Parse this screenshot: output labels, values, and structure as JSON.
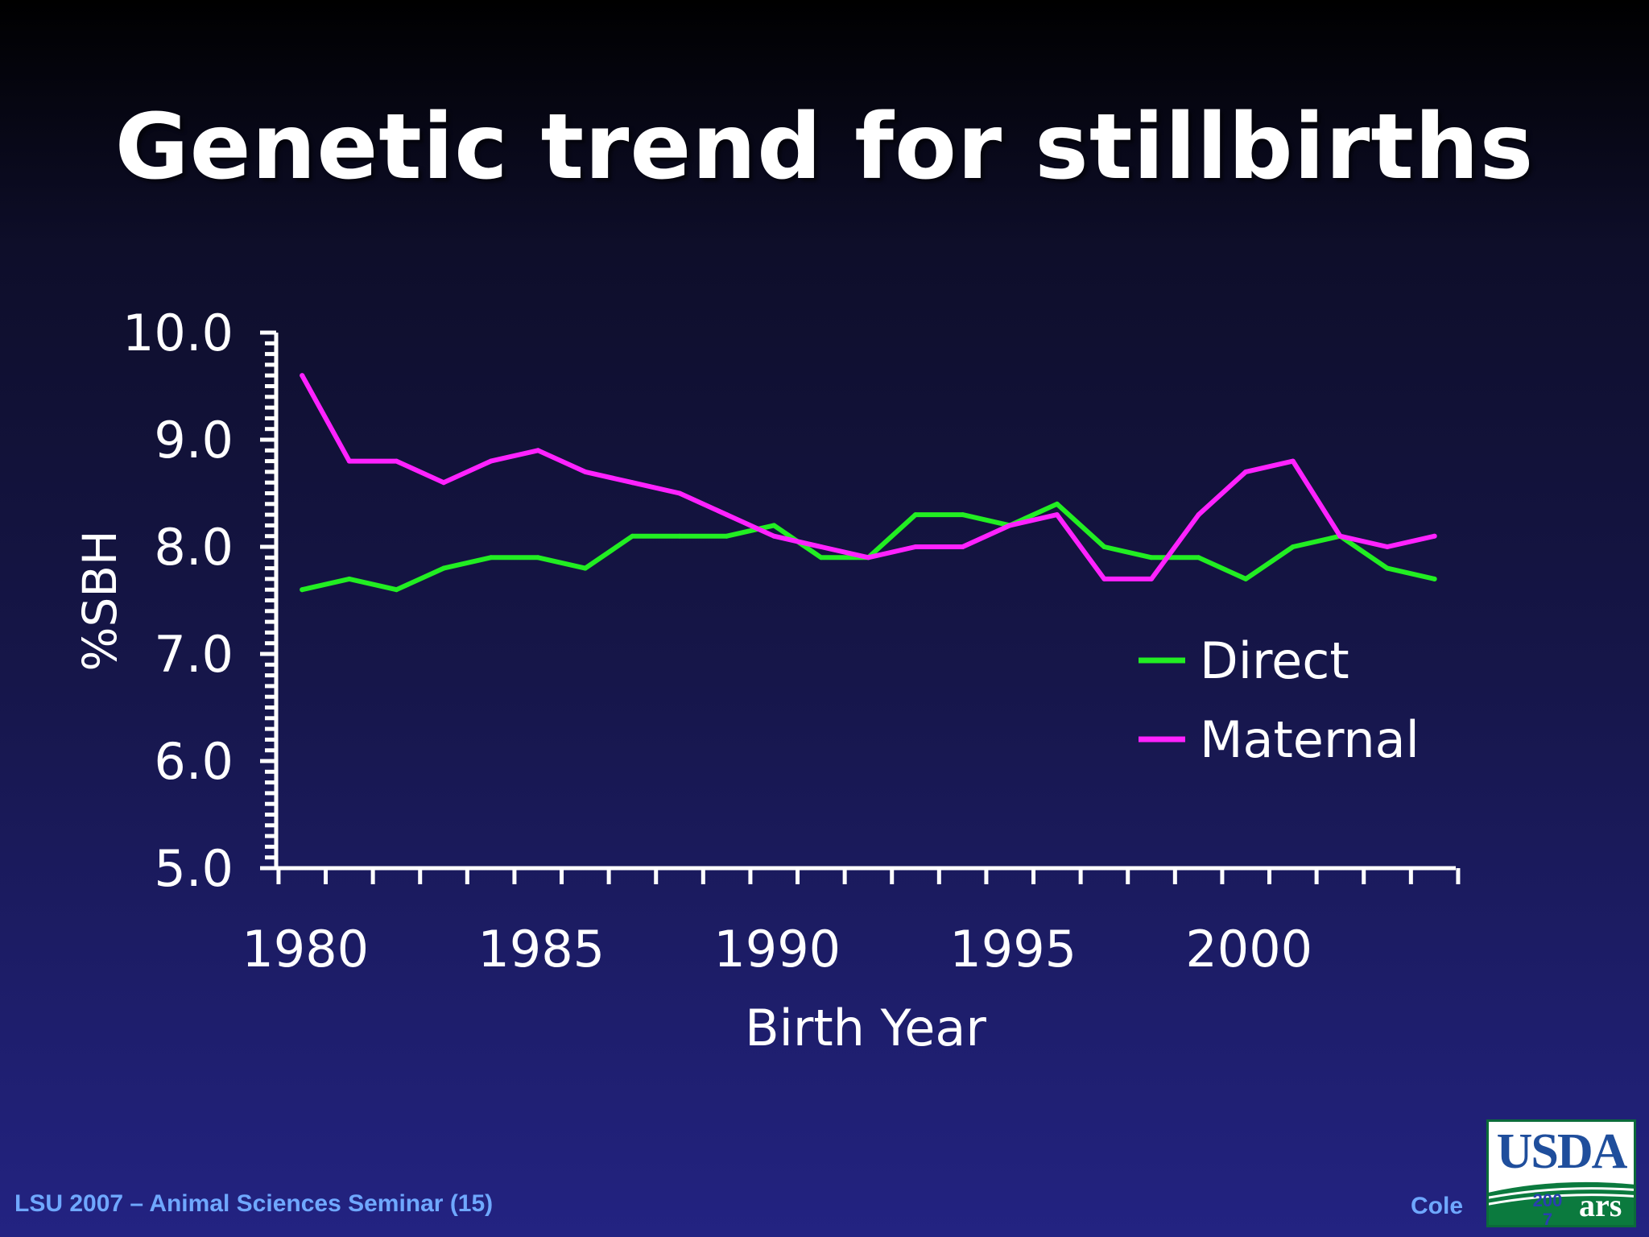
{
  "slide": {
    "title": "Genetic trend for stillbirths",
    "footer_left": "LSU 2007 – Animal Sciences Seminar (15)",
    "footer_right": "Cole",
    "logo_text": "USDA",
    "logo_year": "2007",
    "logo_ars": "ars"
  },
  "colors": {
    "direct": "#22ee22",
    "maternal": "#ff22ff",
    "axis": "#ffffff",
    "text": "#ffffff"
  },
  "chart_data": {
    "type": "line",
    "title": "Genetic trend for stillbirths",
    "xlabel": "Birth Year",
    "ylabel": "%SBH",
    "ylim": [
      5.0,
      10.0
    ],
    "yticks": [
      "5.0",
      "6.0",
      "7.0",
      "8.0",
      "9.0",
      "10.0"
    ],
    "xticks": [
      "1980",
      "1985",
      "1990",
      "1995",
      "2000"
    ],
    "legend_position": "right",
    "x": [
      1980,
      1981,
      1982,
      1983,
      1984,
      1985,
      1986,
      1987,
      1988,
      1989,
      1990,
      1991,
      1992,
      1993,
      1994,
      1995,
      1996,
      1997,
      1998,
      1999,
      2000,
      2001,
      2002,
      2003,
      2004
    ],
    "series": [
      {
        "name": "Direct",
        "values": [
          7.6,
          7.7,
          7.6,
          7.8,
          7.9,
          7.9,
          7.8,
          8.1,
          8.1,
          8.1,
          8.2,
          7.9,
          7.9,
          8.3,
          8.3,
          8.2,
          8.4,
          8.0,
          7.9,
          7.9,
          7.7,
          8.0,
          8.1,
          7.8,
          7.7
        ]
      },
      {
        "name": "Maternal",
        "values": [
          9.6,
          8.8,
          8.8,
          8.6,
          8.8,
          8.9,
          8.7,
          8.6,
          8.5,
          8.3,
          8.1,
          8.0,
          7.9,
          8.0,
          8.0,
          8.2,
          8.3,
          7.7,
          7.7,
          8.3,
          8.7,
          8.8,
          8.1,
          8.0,
          8.1
        ]
      }
    ]
  }
}
